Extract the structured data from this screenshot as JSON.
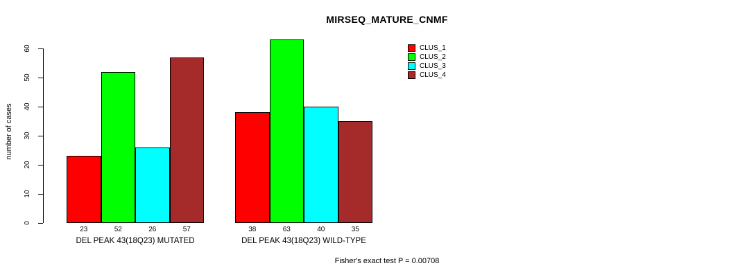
{
  "chart_data": {
    "type": "bar",
    "title": "MIRSEQ_MATURE_CNMF",
    "xlabel": "",
    "ylabel": "number of cases",
    "ylim": [
      0,
      63
    ],
    "yticks": [
      0,
      10,
      20,
      30,
      40,
      50,
      60
    ],
    "grid": false,
    "legend_position": "top-right",
    "bar_border_color": "#000000",
    "series": [
      "CLUS_1",
      "CLUS_2",
      "CLUS_3",
      "CLUS_4"
    ],
    "series_colors": [
      "#ff0000",
      "#00ff00",
      "#00ffff",
      "#a52a2a"
    ],
    "groups": [
      {
        "label": "DEL PEAK 43(18Q23) MUTATED",
        "values": [
          23,
          52,
          26,
          57
        ]
      },
      {
        "label": "DEL PEAK 43(18Q23) WILD-TYPE",
        "values": [
          38,
          63,
          40,
          35
        ]
      }
    ],
    "value_labels_shown": true,
    "annotation": "Fisher's exact test P = 0.00708"
  }
}
